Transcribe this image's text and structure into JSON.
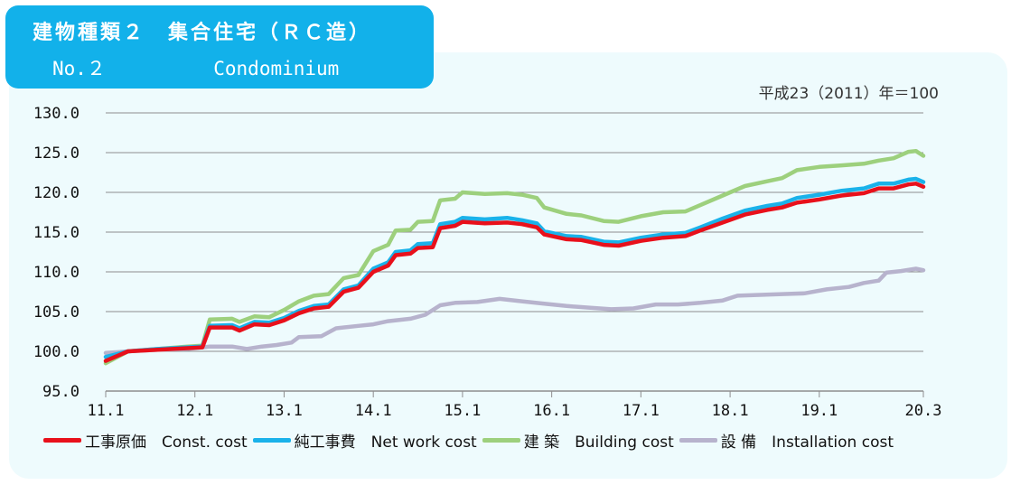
{
  "header": {
    "title_jp": "建物種類２　集合住宅（ＲＣ造）",
    "number": "No.２",
    "title_en": "Condominium"
  },
  "base_note": "平成23（2011）年＝100",
  "colors": {
    "const": "#e8101b",
    "net": "#1ab2ea",
    "building": "#9dd07d",
    "install": "#b7b3cd",
    "grid": "#8e8e8e",
    "header_bg": "#12b1ea",
    "panel_bg": "#eefbfd"
  },
  "chart_data": {
    "type": "line",
    "title": "",
    "xlabel": "",
    "ylabel": "",
    "ylim": [
      95,
      130
    ],
    "yticks": [
      "95.0",
      "100.0",
      "105.0",
      "110.0",
      "115.0",
      "120.0",
      "125.0",
      "130.0"
    ],
    "xticks": [
      "11.1",
      "12.1",
      "13.1",
      "14.1",
      "15.1",
      "16.1",
      "17.1",
      "18.1",
      "19.1",
      "20.3"
    ],
    "x_range": [
      "2011-01",
      "2020-03"
    ],
    "grid": "horizontal",
    "legend_position": "bottom",
    "series": [
      {
        "name": "工事原価　Const. cost",
        "key": "const",
        "points": [
          [
            "2011-01",
            98.8
          ],
          [
            "2011-04",
            100.0
          ],
          [
            "2011-08",
            100.2
          ],
          [
            "2011-12",
            100.4
          ],
          [
            "2012-02",
            100.5
          ],
          [
            "2012-03",
            103.0
          ],
          [
            "2012-06",
            103.0
          ],
          [
            "2012-07",
            102.6
          ],
          [
            "2012-09",
            103.4
          ],
          [
            "2012-11",
            103.3
          ],
          [
            "2013-01",
            103.9
          ],
          [
            "2013-03",
            104.8
          ],
          [
            "2013-05",
            105.4
          ],
          [
            "2013-07",
            105.6
          ],
          [
            "2013-09",
            107.5
          ],
          [
            "2013-11",
            108.0
          ],
          [
            "2014-01",
            110.0
          ],
          [
            "2014-03",
            110.8
          ],
          [
            "2014-04",
            112.1
          ],
          [
            "2014-06",
            112.3
          ],
          [
            "2014-07",
            113.0
          ],
          [
            "2014-09",
            113.1
          ],
          [
            "2014-10",
            115.5
          ],
          [
            "2014-12",
            115.8
          ],
          [
            "2015-01",
            116.3
          ],
          [
            "2015-04",
            116.1
          ],
          [
            "2015-07",
            116.2
          ],
          [
            "2015-09",
            116.0
          ],
          [
            "2015-11",
            115.6
          ],
          [
            "2015-12",
            114.7
          ],
          [
            "2016-03",
            114.1
          ],
          [
            "2016-05",
            114.0
          ],
          [
            "2016-08",
            113.4
          ],
          [
            "2016-10",
            113.3
          ],
          [
            "2017-01",
            113.9
          ],
          [
            "2017-04",
            114.3
          ],
          [
            "2017-07",
            114.5
          ],
          [
            "2017-09",
            115.2
          ],
          [
            "2017-12",
            116.2
          ],
          [
            "2018-03",
            117.2
          ],
          [
            "2018-06",
            117.8
          ],
          [
            "2018-08",
            118.1
          ],
          [
            "2018-10",
            118.7
          ],
          [
            "2019-01",
            119.1
          ],
          [
            "2019-04",
            119.6
          ],
          [
            "2019-07",
            119.9
          ],
          [
            "2019-09",
            120.5
          ],
          [
            "2019-11",
            120.5
          ],
          [
            "2020-01",
            121.0
          ],
          [
            "2020-02",
            121.1
          ],
          [
            "2020-03",
            120.7
          ]
        ]
      },
      {
        "name": "純工事費　Net work cost",
        "key": "net",
        "points": [
          [
            "2011-01",
            99.3
          ],
          [
            "2011-04",
            100.0
          ],
          [
            "2011-08",
            100.3
          ],
          [
            "2011-12",
            100.5
          ],
          [
            "2012-02",
            100.6
          ],
          [
            "2012-03",
            103.2
          ],
          [
            "2012-06",
            103.3
          ],
          [
            "2012-07",
            102.9
          ],
          [
            "2012-09",
            103.7
          ],
          [
            "2012-11",
            103.6
          ],
          [
            "2013-01",
            104.2
          ],
          [
            "2013-03",
            105.1
          ],
          [
            "2013-05",
            105.7
          ],
          [
            "2013-07",
            105.9
          ],
          [
            "2013-09",
            107.8
          ],
          [
            "2013-11",
            108.3
          ],
          [
            "2014-01",
            110.4
          ],
          [
            "2014-03",
            111.2
          ],
          [
            "2014-04",
            112.5
          ],
          [
            "2014-06",
            112.7
          ],
          [
            "2014-07",
            113.5
          ],
          [
            "2014-09",
            113.6
          ],
          [
            "2014-10",
            116.0
          ],
          [
            "2014-12",
            116.3
          ],
          [
            "2015-01",
            116.8
          ],
          [
            "2015-04",
            116.6
          ],
          [
            "2015-07",
            116.8
          ],
          [
            "2015-09",
            116.5
          ],
          [
            "2015-11",
            116.1
          ],
          [
            "2015-12",
            115.1
          ],
          [
            "2016-03",
            114.5
          ],
          [
            "2016-05",
            114.4
          ],
          [
            "2016-08",
            113.8
          ],
          [
            "2016-10",
            113.7
          ],
          [
            "2017-01",
            114.3
          ],
          [
            "2017-04",
            114.7
          ],
          [
            "2017-07",
            114.9
          ],
          [
            "2017-09",
            115.6
          ],
          [
            "2017-12",
            116.7
          ],
          [
            "2018-03",
            117.7
          ],
          [
            "2018-06",
            118.3
          ],
          [
            "2018-08",
            118.6
          ],
          [
            "2018-10",
            119.3
          ],
          [
            "2019-01",
            119.7
          ],
          [
            "2019-04",
            120.2
          ],
          [
            "2019-07",
            120.5
          ],
          [
            "2019-09",
            121.1
          ],
          [
            "2019-11",
            121.1
          ],
          [
            "2020-01",
            121.6
          ],
          [
            "2020-02",
            121.7
          ],
          [
            "2020-03",
            121.3
          ]
        ]
      },
      {
        "name": "建 築　Building cost",
        "key": "building",
        "points": [
          [
            "2011-01",
            98.5
          ],
          [
            "2011-04",
            100.0
          ],
          [
            "2011-08",
            100.3
          ],
          [
            "2011-12",
            100.6
          ],
          [
            "2012-02",
            100.7
          ],
          [
            "2012-03",
            104.0
          ],
          [
            "2012-06",
            104.1
          ],
          [
            "2012-07",
            103.7
          ],
          [
            "2012-09",
            104.4
          ],
          [
            "2012-11",
            104.3
          ],
          [
            "2013-01",
            105.2
          ],
          [
            "2013-03",
            106.3
          ],
          [
            "2013-05",
            107.0
          ],
          [
            "2013-07",
            107.2
          ],
          [
            "2013-09",
            109.2
          ],
          [
            "2013-11",
            109.6
          ],
          [
            "2014-01",
            112.6
          ],
          [
            "2014-03",
            113.4
          ],
          [
            "2014-04",
            115.2
          ],
          [
            "2014-06",
            115.3
          ],
          [
            "2014-07",
            116.3
          ],
          [
            "2014-09",
            116.4
          ],
          [
            "2014-10",
            119.0
          ],
          [
            "2014-12",
            119.2
          ],
          [
            "2015-01",
            120.0
          ],
          [
            "2015-04",
            119.8
          ],
          [
            "2015-07",
            119.9
          ],
          [
            "2015-09",
            119.7
          ],
          [
            "2015-11",
            119.3
          ],
          [
            "2015-12",
            118.1
          ],
          [
            "2016-03",
            117.3
          ],
          [
            "2016-05",
            117.1
          ],
          [
            "2016-08",
            116.4
          ],
          [
            "2016-10",
            116.3
          ],
          [
            "2017-01",
            117.0
          ],
          [
            "2017-04",
            117.5
          ],
          [
            "2017-07",
            117.6
          ],
          [
            "2017-09",
            118.4
          ],
          [
            "2017-12",
            119.6
          ],
          [
            "2018-03",
            120.8
          ],
          [
            "2018-06",
            121.4
          ],
          [
            "2018-08",
            121.8
          ],
          [
            "2018-10",
            122.8
          ],
          [
            "2019-01",
            123.2
          ],
          [
            "2019-04",
            123.4
          ],
          [
            "2019-07",
            123.6
          ],
          [
            "2019-09",
            124.0
          ],
          [
            "2019-11",
            124.3
          ],
          [
            "2020-01",
            125.1
          ],
          [
            "2020-02",
            125.2
          ],
          [
            "2020-03",
            124.6
          ]
        ]
      },
      {
        "name": "設 備　Installation cost",
        "key": "install",
        "points": [
          [
            "2011-01",
            99.8
          ],
          [
            "2011-04",
            100.0
          ],
          [
            "2011-08",
            100.2
          ],
          [
            "2011-12",
            100.3
          ],
          [
            "2012-02",
            100.5
          ],
          [
            "2012-03",
            100.6
          ],
          [
            "2012-06",
            100.6
          ],
          [
            "2012-08",
            100.3
          ],
          [
            "2012-10",
            100.6
          ],
          [
            "2012-12",
            100.8
          ],
          [
            "2013-02",
            101.1
          ],
          [
            "2013-03",
            101.8
          ],
          [
            "2013-06",
            101.9
          ],
          [
            "2013-08",
            102.9
          ],
          [
            "2013-11",
            103.2
          ],
          [
            "2014-01",
            103.4
          ],
          [
            "2014-03",
            103.8
          ],
          [
            "2014-06",
            104.1
          ],
          [
            "2014-08",
            104.6
          ],
          [
            "2014-10",
            105.8
          ],
          [
            "2014-12",
            106.1
          ],
          [
            "2015-03",
            106.2
          ],
          [
            "2015-06",
            106.6
          ],
          [
            "2015-09",
            106.3
          ],
          [
            "2015-12",
            106.0
          ],
          [
            "2016-03",
            105.7
          ],
          [
            "2016-06",
            105.5
          ],
          [
            "2016-09",
            105.3
          ],
          [
            "2016-12",
            105.4
          ],
          [
            "2017-03",
            105.9
          ],
          [
            "2017-06",
            105.9
          ],
          [
            "2017-09",
            106.1
          ],
          [
            "2017-12",
            106.4
          ],
          [
            "2018-02",
            107.0
          ],
          [
            "2018-05",
            107.1
          ],
          [
            "2018-08",
            107.2
          ],
          [
            "2018-11",
            107.3
          ],
          [
            "2019-02",
            107.8
          ],
          [
            "2019-05",
            108.1
          ],
          [
            "2019-07",
            108.6
          ],
          [
            "2019-09",
            108.9
          ],
          [
            "2019-10",
            109.9
          ],
          [
            "2019-12",
            110.1
          ],
          [
            "2020-02",
            110.4
          ],
          [
            "2020-03",
            110.2
          ]
        ]
      }
    ]
  }
}
